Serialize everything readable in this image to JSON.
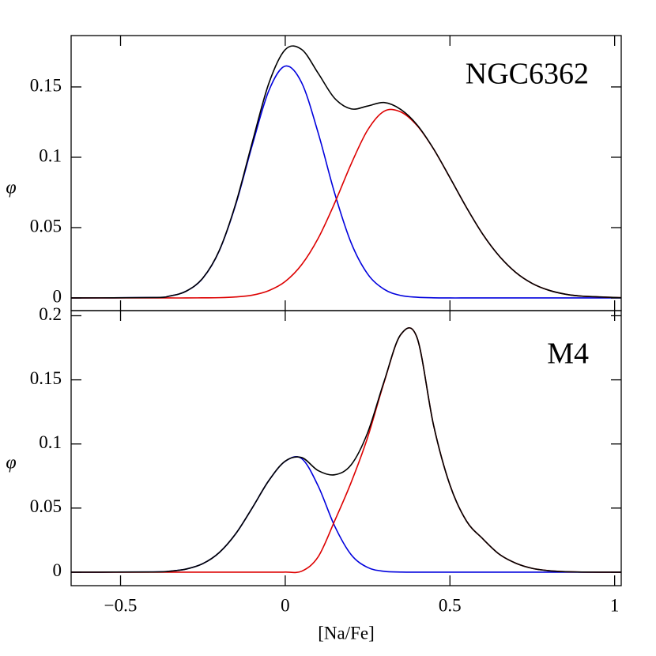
{
  "chart_data": [
    {
      "type": "line",
      "title": "NGC6362",
      "ylabel": "φ",
      "x": [
        -0.65,
        -0.4,
        -0.35,
        -0.3,
        -0.25,
        -0.2,
        -0.15,
        -0.1,
        -0.05,
        0,
        0.05,
        0.1,
        0.15,
        0.2,
        0.25,
        0.3,
        0.35,
        0.4,
        0.45,
        0.5,
        0.55,
        0.6,
        0.65,
        0.7,
        0.75,
        0.8,
        0.85,
        0.9,
        1.02
      ],
      "series": [
        {
          "color": "#0000dd",
          "values": [
            0,
            0.0003,
            0.0014,
            0.0049,
            0.0141,
            0.0337,
            0.0666,
            0.1087,
            0.1472,
            0.1648,
            0.1529,
            0.1173,
            0.0745,
            0.0392,
            0.0171,
            0.0062,
            0.0018,
            0.0005,
            0.0001,
            0,
            0,
            0,
            0,
            0,
            0,
            0,
            0,
            0,
            0
          ]
        },
        {
          "color": "#dd0000",
          "values": [
            0,
            0,
            0,
            0,
            0.0001,
            0.0002,
            0.0007,
            0.002,
            0.0052,
            0.0117,
            0.0237,
            0.0424,
            0.0674,
            0.0952,
            0.1193,
            0.1327,
            0.1323,
            0.1226,
            0.106,
            0.0855,
            0.0644,
            0.0452,
            0.0297,
            0.0181,
            0.0103,
            0.0055,
            0.0027,
            0.0013,
            0.0002
          ]
        },
        {
          "color": "#000000",
          "values": [
            0,
            0.0003,
            0.0014,
            0.0049,
            0.0142,
            0.0339,
            0.0673,
            0.1107,
            0.1524,
            0.1765,
            0.1766,
            0.1597,
            0.1419,
            0.1344,
            0.1364,
            0.1389,
            0.1341,
            0.1231,
            0.1061,
            0.0855,
            0.0644,
            0.0452,
            0.0297,
            0.0181,
            0.0103,
            0.0055,
            0.0027,
            0.0013,
            0.0002
          ]
        }
      ],
      "xlim": [
        -0.65,
        1.02
      ],
      "xticks": [
        -0.5,
        0,
        0.5,
        1
      ],
      "ylim": [
        -0.009,
        0.1865
      ],
      "yticks": [
        0,
        0.05,
        0.1,
        0.15
      ]
    },
    {
      "type": "line",
      "title": "M4",
      "ylabel": "φ",
      "xlabel": "[Na/Fe]",
      "x": [
        -0.65,
        -0.4,
        -0.35,
        -0.3,
        -0.25,
        -0.2,
        -0.15,
        -0.1,
        -0.05,
        0,
        0.05,
        0.1,
        0.15,
        0.2,
        0.25,
        0.3,
        0.35,
        0.4,
        0.45,
        0.5,
        0.55,
        0.6,
        0.65,
        0.7,
        0.75,
        0.8,
        0.85,
        0.9,
        1.02
      ],
      "series": [
        {
          "color": "#0000dd",
          "values": [
            0,
            0.0002,
            0.0008,
            0.0025,
            0.0067,
            0.0154,
            0.0301,
            0.0502,
            0.0714,
            0.0865,
            0.0886,
            0.0672,
            0.036,
            0.0137,
            0.0037,
            0.0007,
            0.0001,
            0,
            0,
            0,
            0,
            0,
            0,
            0,
            0,
            0,
            0,
            0,
            0
          ]
        },
        {
          "color": "#dd0000",
          "values": [
            0,
            0,
            0,
            0,
            0,
            0,
            0,
            0,
            0,
            0.0001,
            0.0008,
            0.012,
            0.04,
            0.07,
            0.105,
            0.148,
            0.185,
            0.183,
            0.115,
            0.068,
            0.04,
            0.026,
            0.014,
            0.007,
            0.003,
            0.0012,
            0.0004,
            0.0001,
            0
          ]
        },
        {
          "color": "#000000",
          "values": [
            0,
            0.0002,
            0.0008,
            0.0025,
            0.0067,
            0.0154,
            0.0301,
            0.0502,
            0.0714,
            0.0866,
            0.0894,
            0.0792,
            0.076,
            0.0837,
            0.1087,
            0.1487,
            0.1851,
            0.183,
            0.115,
            0.068,
            0.04,
            0.026,
            0.014,
            0.007,
            0.003,
            0.0012,
            0.0004,
            0.0001,
            0
          ]
        }
      ],
      "xlim": [
        -0.65,
        1.02
      ],
      "xticks": [
        {
          "value": -0.5,
          "label": "−0.5"
        },
        0,
        0.5,
        1
      ],
      "ylim": [
        -0.0105,
        0.204
      ],
      "yticks": [
        0,
        0.05,
        0.1,
        0.15,
        0.2
      ]
    }
  ]
}
